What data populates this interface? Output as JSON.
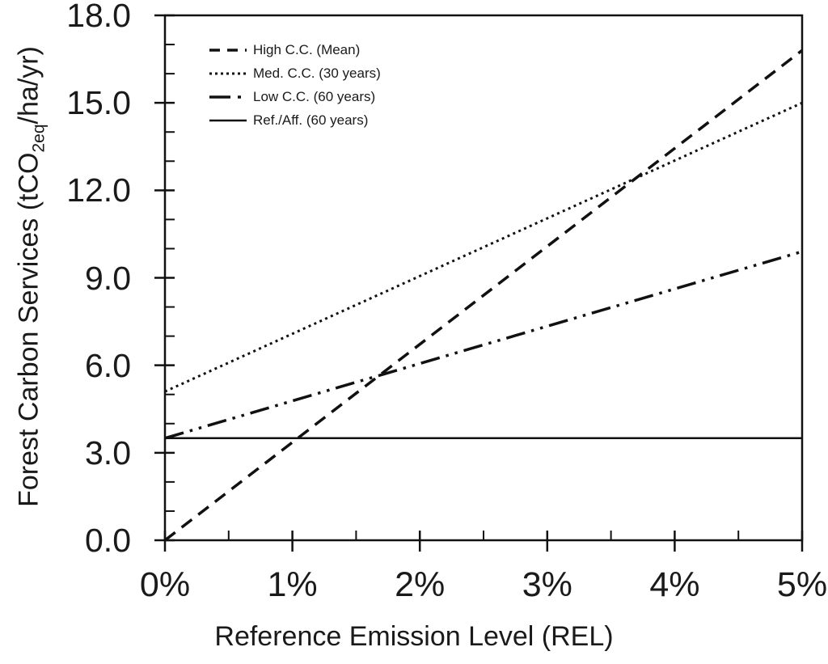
{
  "chart_data": {
    "type": "line",
    "title": "",
    "xlabel": "Reference Emission Level (REL)",
    "ylabel": "Forest Carbon Services (tCO2eq/ha/yr)",
    "ylabel_parts": {
      "pre": "Forest Carbon Services (tCO",
      "sub": "2eq",
      "post": "/ha/yr)"
    },
    "xlim": [
      0,
      5
    ],
    "ylim": [
      0,
      18
    ],
    "x_ticks_major": [
      0,
      1,
      2,
      3,
      4,
      5
    ],
    "x_tick_labels": [
      "0%",
      "1%",
      "2%",
      "3%",
      "4%",
      "5%"
    ],
    "x_minor_step": 0.5,
    "y_ticks_major": [
      0,
      3,
      6,
      9,
      12,
      15,
      18
    ],
    "y_tick_labels": [
      "0.0",
      "3.0",
      "6.0",
      "9.0",
      "12.0",
      "15.0",
      "18.0"
    ],
    "y_minor_step": 1,
    "grid": false,
    "legend_position": "top-left-inside",
    "line_color": "#111111",
    "series": [
      {
        "name": "High C.C. (Mean)",
        "style": "dashed",
        "x": [
          0,
          5
        ],
        "y": [
          0.0,
          16.8
        ]
      },
      {
        "name": "Med. C.C. (30 years)",
        "style": "dotted",
        "x": [
          0,
          5
        ],
        "y": [
          5.1,
          15.0
        ]
      },
      {
        "name": "Low C.C. (60 years)",
        "style": "dashdotdot",
        "x": [
          0,
          5
        ],
        "y": [
          3.5,
          9.9
        ]
      },
      {
        "name": "Ref./Aff. (60 years)",
        "style": "solid",
        "x": [
          0,
          5
        ],
        "y": [
          3.5,
          3.5
        ]
      }
    ]
  }
}
